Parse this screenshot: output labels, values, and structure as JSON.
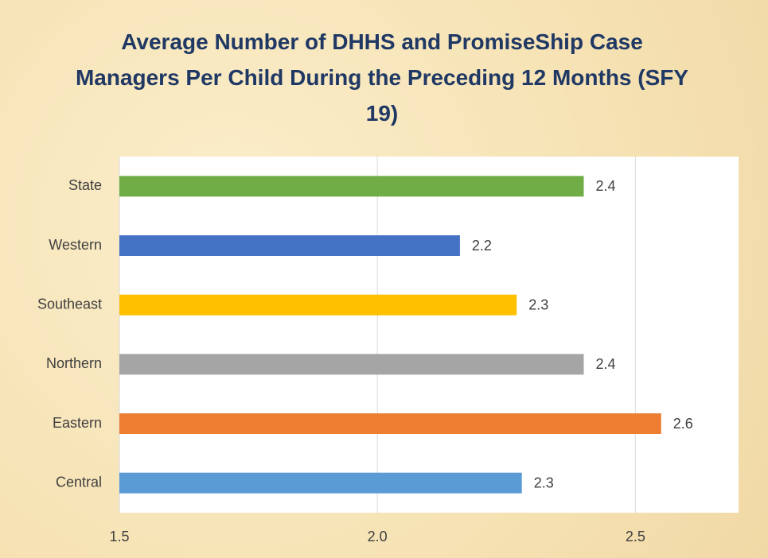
{
  "chart_data": {
    "type": "bar",
    "orientation": "horizontal",
    "title": "Average Number of DHHS and PromiseShip Case Managers Per Child During the Preceding 12 Months (SFY 19)",
    "categories": [
      "State",
      "Western",
      "Southeast",
      "Northern",
      "Eastern",
      "Central"
    ],
    "values": [
      2.4,
      2.16,
      2.27,
      2.4,
      2.55,
      2.28
    ],
    "value_labels": [
      "2.4",
      "2.2",
      "2.3",
      "2.4",
      "2.6",
      "2.3"
    ],
    "colors": [
      "#70ad47",
      "#4472c4",
      "#ffc000",
      "#a5a5a5",
      "#ed7d31",
      "#5b9bd5"
    ],
    "xlim": [
      1.5,
      2.7
    ],
    "xticks": [
      1.5,
      {
        "value": 2,
        "label": "2.0"
      },
      2.5
    ],
    "grid": true
  }
}
